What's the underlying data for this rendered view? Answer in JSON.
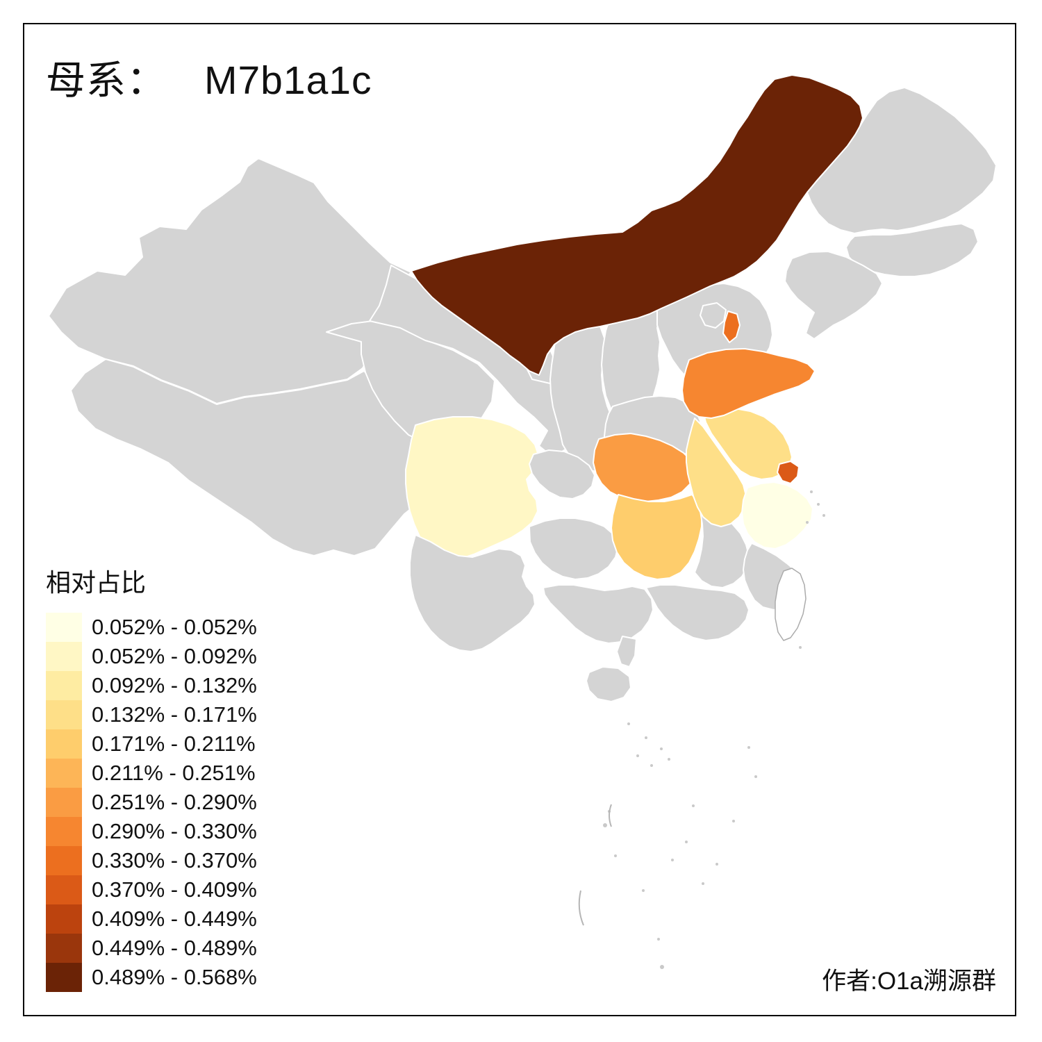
{
  "title": {
    "prefix": "母系：",
    "haplogroup": "M7b1a1c"
  },
  "legend": {
    "title": "相对占比",
    "items": [
      {
        "label": "0.052% - 0.052%",
        "color": "#FFFFE5"
      },
      {
        "label": "0.052% - 0.092%",
        "color": "#FFF7C5"
      },
      {
        "label": "0.092% - 0.132%",
        "color": "#FEECA2"
      },
      {
        "label": "0.132% - 0.171%",
        "color": "#FEDF88"
      },
      {
        "label": "0.171% - 0.211%",
        "color": "#FECD6C"
      },
      {
        "label": "0.211% - 0.251%",
        "color": "#FDB557"
      },
      {
        "label": "0.251% - 0.290%",
        "color": "#FA9C43"
      },
      {
        "label": "0.290% - 0.330%",
        "color": "#F68630"
      },
      {
        "label": "0.330% - 0.370%",
        "color": "#EC6F1F"
      },
      {
        "label": "0.370% - 0.409%",
        "color": "#DB5A17"
      },
      {
        "label": "0.409% - 0.449%",
        "color": "#BC430E"
      },
      {
        "label": "0.449% - 0.489%",
        "color": "#9A360C"
      },
      {
        "label": "0.489% - 0.568%",
        "color": "#6B2306"
      }
    ]
  },
  "author": "作者:O1a溯源群",
  "chart_data": {
    "type": "choropleth_map",
    "region_scope": "china-provinces",
    "default_fill": "#D4D4D4",
    "province_border_color": "#FFFFFF",
    "background": "#FFFFFF",
    "regions": [
      {
        "id": "neimenggu",
        "legend_bucket": "0.489% - 0.568%",
        "color": "#6B2306"
      },
      {
        "id": "shandong",
        "legend_bucket": "0.290% - 0.330%",
        "color": "#F68630"
      },
      {
        "id": "tianjin",
        "legend_bucket": "0.330% - 0.370%",
        "color": "#EC6F1F"
      },
      {
        "id": "hubei",
        "legend_bucket": "0.251% - 0.290%",
        "color": "#FA9C43"
      },
      {
        "id": "hunan",
        "legend_bucket": "0.171% - 0.211%",
        "color": "#FECD6C"
      },
      {
        "id": "anhui",
        "legend_bucket": "0.132% - 0.171%",
        "color": "#FEDF88"
      },
      {
        "id": "jiangsu",
        "legend_bucket": "0.132% - 0.171%",
        "color": "#FEDF88"
      },
      {
        "id": "shanghai",
        "legend_bucket": "0.370% - 0.409%",
        "color": "#DB5A17"
      },
      {
        "id": "sichuan",
        "legend_bucket": "0.052% - 0.092%",
        "color": "#FFF7C5"
      },
      {
        "id": "zhejiang",
        "legend_bucket": "0.052% - 0.052%",
        "color": "#FFFFE5"
      }
    ]
  }
}
